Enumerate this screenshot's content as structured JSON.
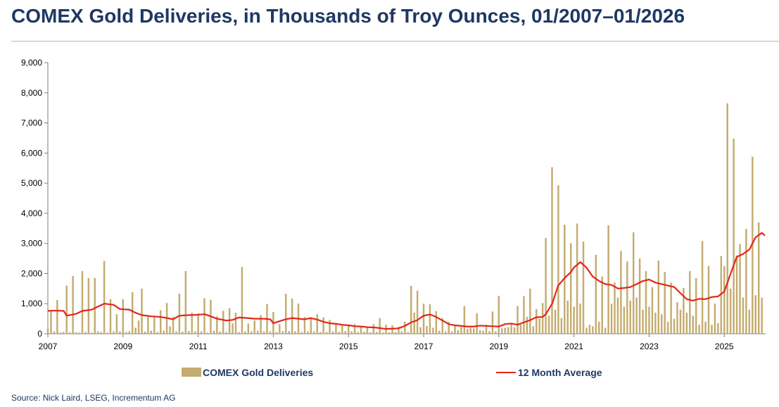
{
  "header": {
    "title": "COMEX Gold Deliveries, in Thousands of Troy Ounces, 01/2007–01/2026"
  },
  "footer": {
    "source": "Source: Nick Laird, LSEG, Incrementum AG"
  },
  "colors": {
    "bars": "#c4ac6f",
    "line": "#e3261b",
    "title": "#1f3864",
    "rule": "#c9b98c"
  },
  "chart_data": {
    "type": "bar",
    "title": "COMEX Gold Deliveries, in Thousands of Troy Ounces, 01/2007–01/2026",
    "xlabel": "",
    "ylabel": "",
    "ylim": [
      0,
      9000
    ],
    "yticks": [
      0,
      1000,
      2000,
      3000,
      4000,
      5000,
      6000,
      7000,
      8000,
      9000
    ],
    "ytick_labels": [
      "0",
      "1,000",
      "2,000",
      "3,000",
      "4,000",
      "5,000",
      "6,000",
      "7,000",
      "8,000",
      "9,000"
    ],
    "xlim": [
      2007.0,
      2026.1
    ],
    "xticks": [
      2007,
      2009,
      2011,
      2013,
      2015,
      2017,
      2019,
      2021,
      2023,
      2025
    ],
    "xtick_labels": [
      "2007",
      "2009",
      "2011",
      "2013",
      "2015",
      "2017",
      "2019",
      "2021",
      "2023",
      "2025"
    ],
    "grid": false,
    "legend": {
      "position": "bottom",
      "entries": [
        "COMEX Gold Deliveries",
        "12 Month Average"
      ]
    },
    "series": [
      {
        "name": "COMEX Gold Deliveries",
        "type": "bar",
        "x_start": 2007.0,
        "step": 0.083333,
        "values": [
          180,
          780,
          80,
          1120,
          40,
          60,
          1600,
          50,
          1920,
          50,
          40,
          2080,
          60,
          1850,
          40,
          1850,
          80,
          60,
          2420,
          40,
          1150,
          80,
          650,
          80,
          1150,
          60,
          80,
          1380,
          200,
          440,
          1500,
          70,
          580,
          100,
          580,
          60,
          780,
          100,
          1020,
          250,
          560,
          80,
          1330,
          70,
          2080,
          90,
          700,
          80,
          680,
          80,
          1180,
          40,
          1130,
          100,
          580,
          70,
          760,
          60,
          850,
          340,
          700,
          60,
          2220,
          80,
          340,
          80,
          440,
          100,
          620,
          80,
          990,
          80,
          720,
          60,
          320,
          90,
          1330,
          90,
          1170,
          80,
          1000,
          60,
          560,
          80,
          540,
          80,
          650,
          60,
          540,
          60,
          460,
          80,
          340,
          70,
          300,
          90,
          280,
          80,
          320,
          60,
          230,
          70,
          240,
          50,
          320,
          60,
          520,
          40,
          300,
          50,
          280,
          60,
          230,
          80,
          400,
          60,
          1590,
          700,
          1430,
          220,
          1000,
          260,
          980,
          200,
          750,
          100,
          520,
          80,
          390,
          80,
          300,
          120,
          220,
          920,
          160,
          200,
          180,
          680,
          120,
          100,
          300,
          90,
          740,
          80,
          1260,
          180,
          200,
          220,
          340,
          220,
          920,
          300,
          1250,
          560,
          1500,
          250,
          820,
          500,
          1020,
          3180,
          600,
          5530,
          800,
          4930,
          520,
          3620,
          1100,
          3010,
          900,
          3660,
          1000,
          3060,
          200,
          300,
          250,
          2620,
          400,
          1900,
          200,
          3600,
          1000,
          1700,
          1200,
          2750,
          900,
          2400,
          1100,
          3370,
          1200,
          2500,
          800,
          2080,
          900,
          1550,
          700,
          2430,
          650,
          2050,
          400,
          1700,
          500,
          1050,
          800,
          1520,
          700,
          2080,
          600,
          1850,
          300,
          3080,
          400,
          2250,
          300,
          1000,
          350,
          2580,
          2250,
          7650,
          1500,
          6480,
          2600,
          2980,
          1200,
          3480,
          800,
          5880,
          1280,
          3700,
          1200
        ]
      },
      {
        "name": "12 Month Average",
        "type": "line",
        "points": [
          [
            2007.0,
            760
          ],
          [
            2007.17,
            770
          ],
          [
            2007.42,
            760
          ],
          [
            2007.5,
            600
          ],
          [
            2007.75,
            660
          ],
          [
            2007.92,
            760
          ],
          [
            2008.17,
            800
          ],
          [
            2008.33,
            900
          ],
          [
            2008.5,
            1000
          ],
          [
            2008.75,
            960
          ],
          [
            2008.92,
            820
          ],
          [
            2009.17,
            800
          ],
          [
            2009.33,
            700
          ],
          [
            2009.5,
            620
          ],
          [
            2009.75,
            580
          ],
          [
            2010.0,
            560
          ],
          [
            2010.17,
            520
          ],
          [
            2010.33,
            480
          ],
          [
            2010.5,
            600
          ],
          [
            2010.75,
            620
          ],
          [
            2011.0,
            630
          ],
          [
            2011.17,
            650
          ],
          [
            2011.33,
            580
          ],
          [
            2011.5,
            500
          ],
          [
            2011.75,
            440
          ],
          [
            2011.92,
            460
          ],
          [
            2012.08,
            540
          ],
          [
            2012.33,
            520
          ],
          [
            2012.5,
            500
          ],
          [
            2012.75,
            500
          ],
          [
            2012.92,
            480
          ],
          [
            2013.0,
            350
          ],
          [
            2013.17,
            420
          ],
          [
            2013.33,
            480
          ],
          [
            2013.5,
            520
          ],
          [
            2013.67,
            500
          ],
          [
            2013.83,
            480
          ],
          [
            2014.0,
            520
          ],
          [
            2014.17,
            470
          ],
          [
            2014.33,
            400
          ],
          [
            2014.5,
            350
          ],
          [
            2014.67,
            330
          ],
          [
            2014.83,
            300
          ],
          [
            2015.0,
            280
          ],
          [
            2015.17,
            250
          ],
          [
            2015.33,
            240
          ],
          [
            2015.5,
            220
          ],
          [
            2015.67,
            210
          ],
          [
            2015.83,
            190
          ],
          [
            2016.0,
            160
          ],
          [
            2016.17,
            170
          ],
          [
            2016.33,
            180
          ],
          [
            2016.5,
            260
          ],
          [
            2016.67,
            380
          ],
          [
            2016.83,
            450
          ],
          [
            2017.0,
            600
          ],
          [
            2017.17,
            640
          ],
          [
            2017.33,
            560
          ],
          [
            2017.5,
            440
          ],
          [
            2017.67,
            320
          ],
          [
            2017.83,
            280
          ],
          [
            2018.0,
            260
          ],
          [
            2018.17,
            240
          ],
          [
            2018.33,
            240
          ],
          [
            2018.5,
            270
          ],
          [
            2018.67,
            260
          ],
          [
            2018.83,
            250
          ],
          [
            2019.0,
            240
          ],
          [
            2019.17,
            320
          ],
          [
            2019.33,
            340
          ],
          [
            2019.5,
            300
          ],
          [
            2019.67,
            380
          ],
          [
            2019.83,
            450
          ],
          [
            2020.0,
            550
          ],
          [
            2020.17,
            560
          ],
          [
            2020.25,
            650
          ],
          [
            2020.42,
            1000
          ],
          [
            2020.58,
            1600
          ],
          [
            2020.75,
            1850
          ],
          [
            2020.92,
            2050
          ],
          [
            2021.0,
            2200
          ],
          [
            2021.17,
            2380
          ],
          [
            2021.33,
            2200
          ],
          [
            2021.5,
            1900
          ],
          [
            2021.67,
            1750
          ],
          [
            2021.83,
            1650
          ],
          [
            2022.0,
            1620
          ],
          [
            2022.17,
            1500
          ],
          [
            2022.33,
            1520
          ],
          [
            2022.5,
            1550
          ],
          [
            2022.67,
            1650
          ],
          [
            2022.83,
            1750
          ],
          [
            2023.0,
            1800
          ],
          [
            2023.17,
            1700
          ],
          [
            2023.33,
            1650
          ],
          [
            2023.5,
            1600
          ],
          [
            2023.67,
            1550
          ],
          [
            2023.83,
            1350
          ],
          [
            2024.0,
            1150
          ],
          [
            2024.17,
            1100
          ],
          [
            2024.33,
            1160
          ],
          [
            2024.5,
            1150
          ],
          [
            2024.67,
            1220
          ],
          [
            2024.83,
            1240
          ],
          [
            2025.0,
            1400
          ],
          [
            2025.17,
            2000
          ],
          [
            2025.33,
            2550
          ],
          [
            2025.5,
            2650
          ],
          [
            2025.67,
            2800
          ],
          [
            2025.83,
            3200
          ],
          [
            2026.0,
            3350
          ],
          [
            2026.08,
            3260
          ]
        ]
      }
    ]
  }
}
